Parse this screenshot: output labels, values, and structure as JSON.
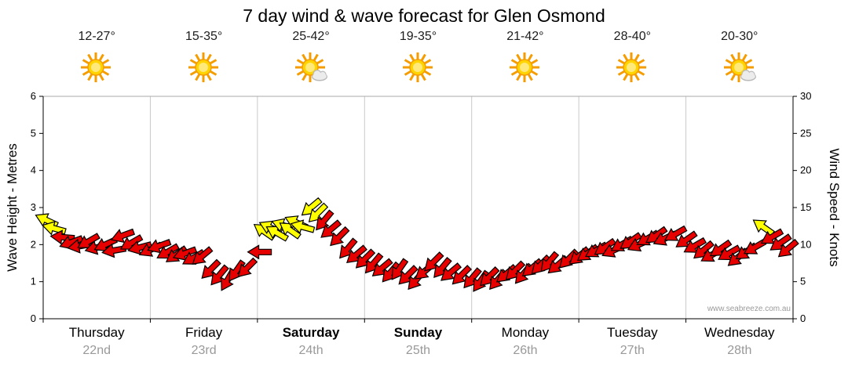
{
  "title": "7 day wind & wave forecast for Glen Osmond",
  "watermark": "www.seabreeze.com.au",
  "colors": {
    "arrow_red": "#e60000",
    "arrow_yellow": "#ffff00",
    "arrow_outline": "#000000",
    "grid": "#c9c9c9",
    "axis": "#000000",
    "top_border": "#aaaaaa",
    "date_gray": "#999999",
    "sun_core": "#ffd400",
    "sun_ray": "#f59d00"
  },
  "axes": {
    "left_title": "Wave Height - Metres",
    "right_title": "Wind Speed - Knots",
    "left_ticks": [
      0,
      1,
      2,
      3,
      4,
      5,
      6
    ],
    "right_ticks": [
      0,
      5,
      10,
      15,
      20,
      25,
      30
    ],
    "left_range_metres": [
      0,
      6
    ],
    "right_range_knots": [
      0,
      30
    ]
  },
  "days": [
    {
      "name": "Thursday",
      "date": "22nd",
      "temp": "12-27°",
      "icon": "sun",
      "bold": false
    },
    {
      "name": "Friday",
      "date": "23rd",
      "temp": "15-35°",
      "icon": "sun",
      "bold": false
    },
    {
      "name": "Saturday",
      "date": "24th",
      "temp": "25-42°",
      "icon": "sun-cloud",
      "bold": true
    },
    {
      "name": "Sunday",
      "date": "25th",
      "temp": "19-35°",
      "icon": "sun",
      "bold": true
    },
    {
      "name": "Monday",
      "date": "26th",
      "temp": "21-42°",
      "icon": "sun",
      "bold": false
    },
    {
      "name": "Tuesday",
      "date": "27th",
      "temp": "28-40°",
      "icon": "sun",
      "bold": false
    },
    {
      "name": "Wednesday",
      "date": "28th",
      "temp": "20-30°",
      "icon": "sun-cloud",
      "bold": false
    }
  ],
  "chart_data": {
    "type": "scatter",
    "subtype": "wind-arrows",
    "title": "7 day wind & wave forecast for Glen Osmond",
    "x_categories": [
      "Thursday 22nd",
      "Friday 23rd",
      "Saturday 24th",
      "Sunday 25th",
      "Monday 26th",
      "Tuesday 27th",
      "Wednesday 28th"
    ],
    "x_unit": "days (0 = start of Thursday 22nd, one unit per day)",
    "y_unit": "wind speed in knots (right axis); wave-height axis 0-6 m maps to 0-30 kn",
    "ylim": [
      0,
      30
    ],
    "wave_axis_ylim_metres": [
      0,
      6
    ],
    "grid": "vertical day separators only",
    "legend": "yellow arrows = lighter/feature wind, red arrows = main forecast wind",
    "points_format": [
      "x_days",
      "wind_knots",
      "arrow_rotation_deg_cw_from_east",
      "color(r|y)"
    ],
    "points": [
      [
        0.03,
        13.3,
        205,
        "y"
      ],
      [
        0.1,
        12.2,
        195,
        "y"
      ],
      [
        0.18,
        11.0,
        185,
        "r"
      ],
      [
        0.26,
        10.3,
        160,
        "r"
      ],
      [
        0.34,
        9.8,
        170,
        "r"
      ],
      [
        0.42,
        10.4,
        150,
        "r"
      ],
      [
        0.5,
        9.6,
        165,
        "r"
      ],
      [
        0.58,
        10.0,
        155,
        "r"
      ],
      [
        0.66,
        9.2,
        170,
        "r"
      ],
      [
        0.74,
        11.2,
        160,
        "r"
      ],
      [
        0.82,
        10.2,
        150,
        "r"
      ],
      [
        0.9,
        9.6,
        165,
        "r"
      ],
      [
        1.0,
        9.3,
        155,
        "r"
      ],
      [
        1.08,
        9.8,
        160,
        "r"
      ],
      [
        1.16,
        9.0,
        150,
        "r"
      ],
      [
        1.24,
        8.6,
        145,
        "r"
      ],
      [
        1.32,
        8.8,
        160,
        "r"
      ],
      [
        1.4,
        8.2,
        150,
        "r"
      ],
      [
        1.48,
        8.4,
        140,
        "r"
      ],
      [
        1.56,
        6.6,
        135,
        "r"
      ],
      [
        1.64,
        5.8,
        130,
        "r"
      ],
      [
        1.72,
        5.2,
        120,
        "r"
      ],
      [
        1.8,
        6.4,
        125,
        "r"
      ],
      [
        1.9,
        6.8,
        135,
        "r"
      ],
      [
        2.02,
        9.0,
        180,
        "r"
      ],
      [
        2.06,
        11.8,
        215,
        "y"
      ],
      [
        2.12,
        12.3,
        205,
        "y"
      ],
      [
        2.18,
        11.6,
        210,
        "y"
      ],
      [
        2.24,
        12.6,
        200,
        "y"
      ],
      [
        2.3,
        12.0,
        215,
        "y"
      ],
      [
        2.36,
        13.0,
        205,
        "y"
      ],
      [
        2.42,
        12.4,
        195,
        "y"
      ],
      [
        2.5,
        15.0,
        140,
        "y"
      ],
      [
        2.56,
        14.2,
        135,
        "y"
      ],
      [
        2.62,
        13.2,
        130,
        "r"
      ],
      [
        2.68,
        12.0,
        140,
        "r"
      ],
      [
        2.76,
        11.0,
        135,
        "r"
      ],
      [
        2.84,
        9.4,
        130,
        "r"
      ],
      [
        2.92,
        8.6,
        140,
        "r"
      ],
      [
        3.0,
        8.0,
        135,
        "r"
      ],
      [
        3.08,
        7.4,
        130,
        "r"
      ],
      [
        3.16,
        6.8,
        140,
        "r"
      ],
      [
        3.24,
        6.2,
        130,
        "r"
      ],
      [
        3.32,
        6.6,
        125,
        "r"
      ],
      [
        3.4,
        5.8,
        135,
        "r"
      ],
      [
        3.48,
        5.2,
        130,
        "r"
      ],
      [
        3.56,
        6.4,
        140,
        "r"
      ],
      [
        3.64,
        7.6,
        135,
        "r"
      ],
      [
        3.72,
        6.8,
        130,
        "r"
      ],
      [
        3.8,
        6.2,
        140,
        "r"
      ],
      [
        3.9,
        5.8,
        135,
        "r"
      ],
      [
        4.0,
        5.4,
        130,
        "r"
      ],
      [
        4.08,
        5.0,
        125,
        "r"
      ],
      [
        4.16,
        5.6,
        135,
        "r"
      ],
      [
        4.24,
        5.2,
        130,
        "r"
      ],
      [
        4.32,
        6.0,
        140,
        "r"
      ],
      [
        4.4,
        6.4,
        135,
        "r"
      ],
      [
        4.48,
        6.0,
        130,
        "r"
      ],
      [
        4.56,
        6.8,
        140,
        "r"
      ],
      [
        4.64,
        7.2,
        135,
        "r"
      ],
      [
        4.72,
        7.6,
        130,
        "r"
      ],
      [
        4.8,
        7.2,
        140,
        "r"
      ],
      [
        4.9,
        8.0,
        135,
        "r"
      ],
      [
        5.0,
        8.4,
        140,
        "r"
      ],
      [
        5.08,
        8.8,
        145,
        "r"
      ],
      [
        5.16,
        9.2,
        150,
        "r"
      ],
      [
        5.24,
        9.6,
        145,
        "r"
      ],
      [
        5.32,
        9.2,
        155,
        "r"
      ],
      [
        5.4,
        10.0,
        150,
        "r"
      ],
      [
        5.48,
        10.4,
        145,
        "r"
      ],
      [
        5.56,
        10.0,
        155,
        "r"
      ],
      [
        5.64,
        10.8,
        150,
        "r"
      ],
      [
        5.72,
        11.2,
        145,
        "r"
      ],
      [
        5.8,
        10.8,
        155,
        "r"
      ],
      [
        5.9,
        11.4,
        150,
        "r"
      ],
      [
        6.0,
        10.6,
        145,
        "r"
      ],
      [
        6.08,
        9.8,
        150,
        "r"
      ],
      [
        6.16,
        9.2,
        140,
        "r"
      ],
      [
        6.24,
        8.6,
        150,
        "r"
      ],
      [
        6.32,
        9.4,
        145,
        "r"
      ],
      [
        6.4,
        8.8,
        150,
        "r"
      ],
      [
        6.48,
        8.2,
        140,
        "r"
      ],
      [
        6.56,
        9.0,
        145,
        "r"
      ],
      [
        6.64,
        9.6,
        150,
        "r"
      ],
      [
        6.72,
        12.4,
        215,
        "y"
      ],
      [
        6.8,
        11.0,
        150,
        "r"
      ],
      [
        6.88,
        10.2,
        145,
        "r"
      ],
      [
        6.95,
        9.4,
        140,
        "r"
      ]
    ]
  }
}
